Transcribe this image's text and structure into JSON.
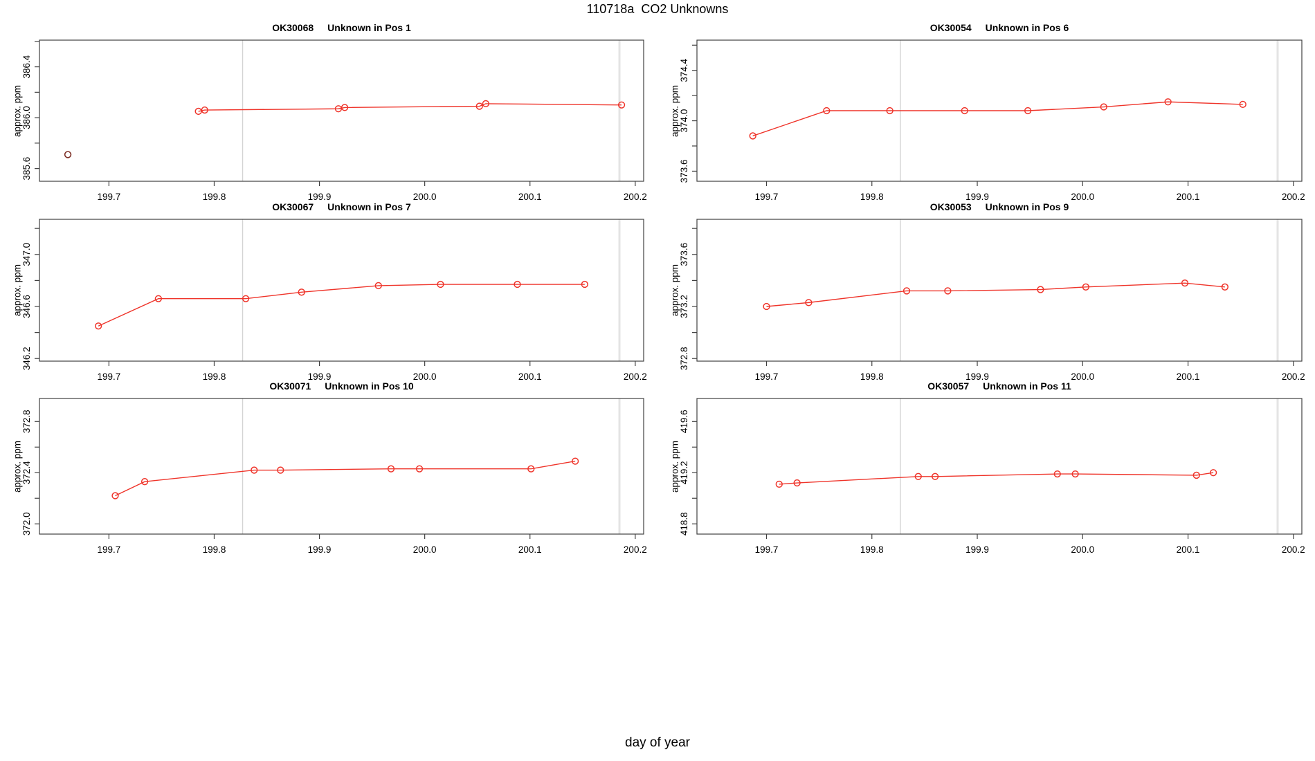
{
  "page": {
    "title": "110718a  CO2 Unknowns",
    "xlabel": "day of year"
  },
  "colors": {
    "series": "#ef342a",
    "outlier": "#7e2f26",
    "axis": "#404040",
    "text": "#000000",
    "background": "#ffffff"
  },
  "chart_data": {
    "type": "line",
    "title": "110718a  CO2 Unknowns",
    "xlabel": "day of year",
    "ylabel": "approx. ppm",
    "legend": "none",
    "grid": "off",
    "x_lim": [
      199.634,
      200.208
    ],
    "x_ticks": [
      199.7,
      199.8,
      199.9,
      200.0,
      200.1,
      200.2
    ],
    "x_tick_labels": [
      "199.7",
      "199.8",
      "199.9",
      "200.0",
      "200.1",
      "200.2"
    ],
    "vlines": [
      {
        "x": 199.827,
        "width": 1.4,
        "color": "#d4d4d4"
      },
      {
        "x": 200.185,
        "width": 3,
        "color": "#e4e4e4"
      }
    ],
    "panels": [
      {
        "sample": "OK30068",
        "desc": "Unknown in Pos 1",
        "ylabel": "approx. ppm",
        "y_lim": [
          385.5,
          386.61
        ],
        "y_ticks": [
          385.6,
          385.8,
          386.0,
          386.2,
          386.4,
          386.6
        ],
        "y_labeled": [
          {
            "v": 385.6,
            "t": "385.6"
          },
          {
            "v": 386.0,
            "t": "386.0"
          },
          {
            "v": 386.4,
            "t": "386.4"
          }
        ],
        "series": {
          "x": [
            199.785,
            199.791,
            199.918,
            199.924,
            200.052,
            200.058,
            200.187
          ],
          "y": [
            386.05,
            386.06,
            386.07,
            386.08,
            386.09,
            386.11,
            386.1
          ]
        },
        "outliers": {
          "x": [
            199.661
          ],
          "y": [
            385.71
          ]
        }
      },
      {
        "sample": "OK30054",
        "desc": "Unknown in Pos 6",
        "ylabel": "approx. ppm",
        "y_lim": [
          373.52,
          374.64
        ],
        "y_ticks": [
          373.6,
          373.8,
          374.0,
          374.2,
          374.4,
          374.6
        ],
        "y_labeled": [
          {
            "v": 373.6,
            "t": "373.6"
          },
          {
            "v": 374.0,
            "t": "374.0"
          },
          {
            "v": 374.4,
            "t": "374.4"
          }
        ],
        "series": {
          "x": [
            199.687,
            199.757,
            199.817,
            199.888,
            199.948,
            200.02,
            200.081,
            200.152
          ],
          "y": [
            373.88,
            374.08,
            374.08,
            374.08,
            374.08,
            374.11,
            374.15,
            374.13
          ]
        },
        "outliers": null
      },
      {
        "sample": "OK30067",
        "desc": "Unknown in Pos 7",
        "ylabel": "approx. ppm",
        "y_lim": [
          346.18,
          347.27
        ],
        "y_ticks": [
          346.2,
          346.4,
          346.6,
          346.8,
          347.0,
          347.2
        ],
        "y_labeled": [
          {
            "v": 346.2,
            "t": "346.2"
          },
          {
            "v": 346.6,
            "t": "346.6"
          },
          {
            "v": 347.0,
            "t": "347.0"
          }
        ],
        "series": {
          "x": [
            199.69,
            199.747,
            199.83,
            199.883,
            199.956,
            200.015,
            200.088,
            200.152
          ],
          "y": [
            346.45,
            346.66,
            346.66,
            346.71,
            346.76,
            346.77,
            346.77,
            346.77
          ]
        },
        "outliers": null
      },
      {
        "sample": "OK30053",
        "desc": "Unknown in Pos 9",
        "ylabel": "approx. ppm",
        "y_lim": [
          372.78,
          373.87
        ],
        "y_ticks": [
          372.8,
          373.0,
          373.2,
          373.4,
          373.6,
          373.8
        ],
        "y_labeled": [
          {
            "v": 372.8,
            "t": "372.8"
          },
          {
            "v": 373.2,
            "t": "373.2"
          },
          {
            "v": 373.6,
            "t": "373.6"
          }
        ],
        "series": {
          "x": [
            199.7,
            199.74,
            199.833,
            199.872,
            199.96,
            200.003,
            200.097,
            200.135
          ],
          "y": [
            373.2,
            373.23,
            373.32,
            373.32,
            373.33,
            373.35,
            373.38,
            373.35
          ]
        },
        "outliers": null
      },
      {
        "sample": "OK30071",
        "desc": "Unknown in Pos 10",
        "ylabel": "approx. ppm",
        "y_lim": [
          371.92,
          372.98
        ],
        "y_ticks": [
          372.0,
          372.2,
          372.4,
          372.6,
          372.8
        ],
        "y_labeled": [
          {
            "v": 372.0,
            "t": "372.0"
          },
          {
            "v": 372.4,
            "t": "372.4"
          },
          {
            "v": 372.8,
            "t": "372.8"
          }
        ],
        "series": {
          "x": [
            199.706,
            199.734,
            199.838,
            199.863,
            199.968,
            199.995,
            200.101,
            200.143
          ],
          "y": [
            372.22,
            372.33,
            372.42,
            372.42,
            372.43,
            372.43,
            372.43,
            372.49
          ]
        },
        "outliers": null
      },
      {
        "sample": "OK30057",
        "desc": "Unknown in Pos 11",
        "ylabel": "approx. ppm",
        "y_lim": [
          418.72,
          419.78
        ],
        "y_ticks": [
          418.8,
          419.0,
          419.2,
          419.4,
          419.6
        ],
        "y_labeled": [
          {
            "v": 418.8,
            "t": "418.8"
          },
          {
            "v": 419.2,
            "t": "419.2"
          },
          {
            "v": 419.6,
            "t": "419.6"
          }
        ],
        "series": {
          "x": [
            199.712,
            199.729,
            199.844,
            199.86,
            199.976,
            199.993,
            200.108,
            200.124
          ],
          "y": [
            419.11,
            419.12,
            419.17,
            419.17,
            419.19,
            419.19,
            419.18,
            419.2
          ]
        },
        "outliers": null
      }
    ]
  }
}
